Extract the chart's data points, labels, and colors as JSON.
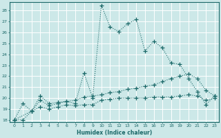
{
  "xlabel": "Humidex (Indice chaleur)",
  "background_color": "#cce8e8",
  "grid_color": "#ffffff",
  "line_color": "#1a6868",
  "xlim_min": -0.5,
  "xlim_max": 23.5,
  "ylim_min": 17.8,
  "ylim_max": 28.8,
  "yticks": [
    18,
    19,
    20,
    21,
    22,
    23,
    24,
    25,
    26,
    27,
    28
  ],
  "xticks": [
    0,
    1,
    2,
    3,
    4,
    5,
    6,
    7,
    8,
    9,
    10,
    11,
    12,
    13,
    14,
    15,
    16,
    17,
    18,
    19,
    20,
    21,
    22,
    23
  ],
  "line1_x": [
    0,
    1,
    2,
    3,
    4,
    5,
    6,
    7,
    8,
    9,
    10,
    11,
    12,
    13,
    14,
    15,
    16,
    17,
    18,
    19,
    20,
    21,
    22,
    23
  ],
  "line1_y": [
    18.0,
    19.5,
    18.8,
    20.2,
    19.5,
    19.6,
    19.7,
    19.5,
    22.3,
    20.0,
    28.5,
    26.5,
    26.1,
    26.8,
    27.2,
    24.3,
    25.2,
    24.6,
    23.2,
    23.1,
    21.8,
    20.6,
    19.4,
    20.2
  ],
  "line2_x": [
    0,
    2,
    3,
    4,
    5,
    6,
    7,
    8,
    9,
    10,
    11,
    12,
    13,
    14,
    15,
    16,
    17,
    18,
    19,
    20,
    21,
    22,
    23
  ],
  "line2_y": [
    18.0,
    18.8,
    19.8,
    19.3,
    19.5,
    19.7,
    19.8,
    20.1,
    20.2,
    20.3,
    20.5,
    20.6,
    20.8,
    20.9,
    21.1,
    21.2,
    21.5,
    21.8,
    22.0,
    22.2,
    21.8,
    20.7,
    20.2
  ],
  "line3_x": [
    0,
    1,
    2,
    3,
    4,
    5,
    6,
    7,
    8,
    9,
    10,
    11,
    12,
    13,
    14,
    15,
    16,
    17,
    18,
    19,
    20,
    21,
    22,
    23
  ],
  "line3_y": [
    18.0,
    18.0,
    18.8,
    19.2,
    19.0,
    19.2,
    19.4,
    19.3,
    19.4,
    19.4,
    19.8,
    19.9,
    20.0,
    20.0,
    20.0,
    20.0,
    20.1,
    20.1,
    20.1,
    20.2,
    20.3,
    20.2,
    19.8,
    20.0
  ]
}
